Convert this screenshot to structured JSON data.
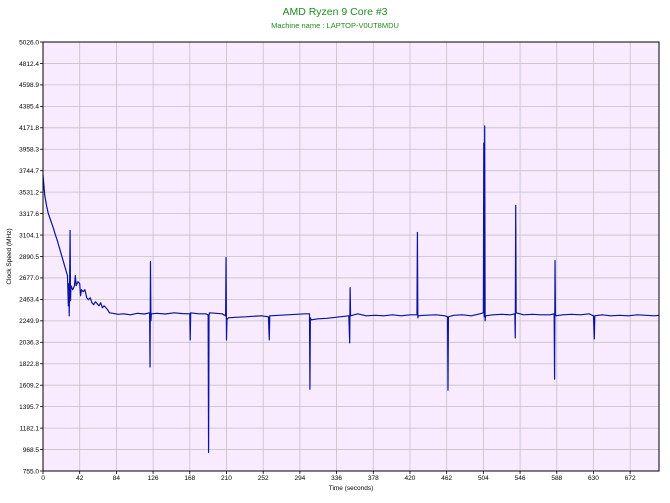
{
  "chart_data": {
    "type": "line",
    "title": "AMD Ryzen 9 Core #3",
    "subtitle": "Machine name : LAPTOP-V0UT8MDU",
    "xlabel": "Time (seconds)",
    "ylabel": "Clock Speed (MHz)",
    "xlim": [
      0,
      705
    ],
    "ylim": [
      755.0,
      5026.0
    ],
    "x_ticks": [
      0,
      42,
      84,
      126,
      168,
      210,
      252,
      294,
      336,
      378,
      420,
      462,
      504,
      546,
      588,
      630,
      672
    ],
    "y_ticks": [
      755.0,
      968.5,
      1182.1,
      1395.7,
      1609.2,
      1822.8,
      2036.3,
      2249.9,
      2463.4,
      2677.0,
      2890.5,
      3104.1,
      3317.6,
      3531.2,
      3744.7,
      3958.3,
      4171.8,
      4385.4,
      4598.9,
      4812.4,
      5026.0
    ],
    "grid": true,
    "colors": {
      "line": "#0a12a0",
      "plot_bg": "#f8eaff",
      "grid": "#c3c3c3",
      "title": "#218b21"
    },
    "series": [
      {
        "values": [
          [
            0,
            3700
          ],
          [
            1,
            3600
          ],
          [
            2,
            3500
          ],
          [
            3,
            3450
          ],
          [
            4,
            3400
          ],
          [
            5,
            3360
          ],
          [
            6,
            3320
          ],
          [
            8,
            3270
          ],
          [
            10,
            3220
          ],
          [
            12,
            3170
          ],
          [
            14,
            3110
          ],
          [
            16,
            3060
          ],
          [
            18,
            3000
          ],
          [
            20,
            2940
          ],
          [
            22,
            2880
          ],
          [
            24,
            2820
          ],
          [
            26,
            2760
          ],
          [
            28,
            2700
          ],
          [
            29,
            2400
          ],
          [
            29.5,
            2620
          ],
          [
            30,
            2300
          ],
          [
            30.5,
            2660
          ],
          [
            31,
            3150
          ],
          [
            31.5,
            2450
          ],
          [
            32,
            2600
          ],
          [
            34,
            2560
          ],
          [
            36,
            2600
          ],
          [
            37,
            2700
          ],
          [
            38,
            2600
          ],
          [
            40,
            2640
          ],
          [
            42,
            2620
          ],
          [
            43,
            2500
          ],
          [
            44,
            2560
          ],
          [
            46,
            2540
          ],
          [
            48,
            2560
          ],
          [
            50,
            2480
          ],
          [
            52,
            2460
          ],
          [
            54,
            2480
          ],
          [
            56,
            2430
          ],
          [
            58,
            2410
          ],
          [
            60,
            2440
          ],
          [
            62,
            2420
          ],
          [
            64,
            2400
          ],
          [
            66,
            2430
          ],
          [
            68,
            2380
          ],
          [
            70,
            2400
          ],
          [
            72,
            2380
          ],
          [
            74,
            2360
          ],
          [
            76,
            2330
          ],
          [
            80,
            2325
          ],
          [
            86,
            2315
          ],
          [
            92,
            2320
          ],
          [
            100,
            2310
          ],
          [
            108,
            2325
          ],
          [
            116,
            2318
          ],
          [
            122,
            2330
          ],
          [
            122.5,
            1790
          ],
          [
            123,
            2840
          ],
          [
            123.5,
            2250
          ],
          [
            124,
            2320
          ],
          [
            130,
            2325
          ],
          [
            140,
            2318
          ],
          [
            150,
            2330
          ],
          [
            160,
            2322
          ],
          [
            168,
            2320
          ],
          [
            168.5,
            2060
          ],
          [
            169,
            2330
          ],
          [
            178,
            2320
          ],
          [
            186,
            2320
          ],
          [
            189,
            2310
          ],
          [
            189.5,
            940
          ],
          [
            190,
            2300
          ],
          [
            190.5,
            2330
          ],
          [
            198,
            2325
          ],
          [
            205,
            2320
          ],
          [
            209,
            2300
          ],
          [
            209.5,
            2880
          ],
          [
            210,
            2060
          ],
          [
            210.5,
            2260
          ],
          [
            212,
            2280
          ],
          [
            220,
            2285
          ],
          [
            232,
            2290
          ],
          [
            240,
            2295
          ],
          [
            250,
            2300
          ],
          [
            258,
            2290
          ],
          [
            259,
            2060
          ],
          [
            259.5,
            2300
          ],
          [
            270,
            2305
          ],
          [
            280,
            2310
          ],
          [
            290,
            2315
          ],
          [
            300,
            2320
          ],
          [
            305,
            2320
          ],
          [
            305.5,
            1570
          ],
          [
            306,
            2280
          ],
          [
            307,
            2260
          ],
          [
            315,
            2270
          ],
          [
            325,
            2275
          ],
          [
            335,
            2285
          ],
          [
            340,
            2290
          ],
          [
            350,
            2300
          ],
          [
            351,
            2030
          ],
          [
            351.5,
            2580
          ],
          [
            352,
            2300
          ],
          [
            360,
            2320
          ],
          [
            370,
            2300
          ],
          [
            380,
            2305
          ],
          [
            390,
            2300
          ],
          [
            400,
            2310
          ],
          [
            410,
            2300
          ],
          [
            420,
            2310
          ],
          [
            428,
            2310
          ],
          [
            428.5,
            3130
          ],
          [
            429,
            2280
          ],
          [
            429.5,
            2300
          ],
          [
            436,
            2305
          ],
          [
            450,
            2310
          ],
          [
            460,
            2300
          ],
          [
            463,
            2290
          ],
          [
            463.5,
            1560
          ],
          [
            464,
            2290
          ],
          [
            470,
            2305
          ],
          [
            480,
            2310
          ],
          [
            490,
            2300
          ],
          [
            500,
            2320
          ],
          [
            504,
            2330
          ],
          [
            504.5,
            4020
          ],
          [
            505,
            2290
          ],
          [
            505.5,
            4190
          ],
          [
            506,
            2250
          ],
          [
            506.5,
            2300
          ],
          [
            515,
            2310
          ],
          [
            525,
            2315
          ],
          [
            535,
            2310
          ],
          [
            540,
            2320
          ],
          [
            540.5,
            2080
          ],
          [
            541,
            3400
          ],
          [
            541.5,
            2330
          ],
          [
            550,
            2310
          ],
          [
            560,
            2315
          ],
          [
            570,
            2310
          ],
          [
            580,
            2310
          ],
          [
            585,
            2320
          ],
          [
            585.5,
            1670
          ],
          [
            586,
            2850
          ],
          [
            586.5,
            2300
          ],
          [
            595,
            2310
          ],
          [
            605,
            2315
          ],
          [
            615,
            2310
          ],
          [
            625,
            2320
          ],
          [
            630,
            2300
          ],
          [
            631,
            2070
          ],
          [
            631.5,
            2300
          ],
          [
            640,
            2310
          ],
          [
            650,
            2300
          ],
          [
            660,
            2305
          ],
          [
            670,
            2300
          ],
          [
            680,
            2310
          ],
          [
            690,
            2305
          ],
          [
            700,
            2300
          ],
          [
            705,
            2305
          ]
        ]
      }
    ]
  }
}
